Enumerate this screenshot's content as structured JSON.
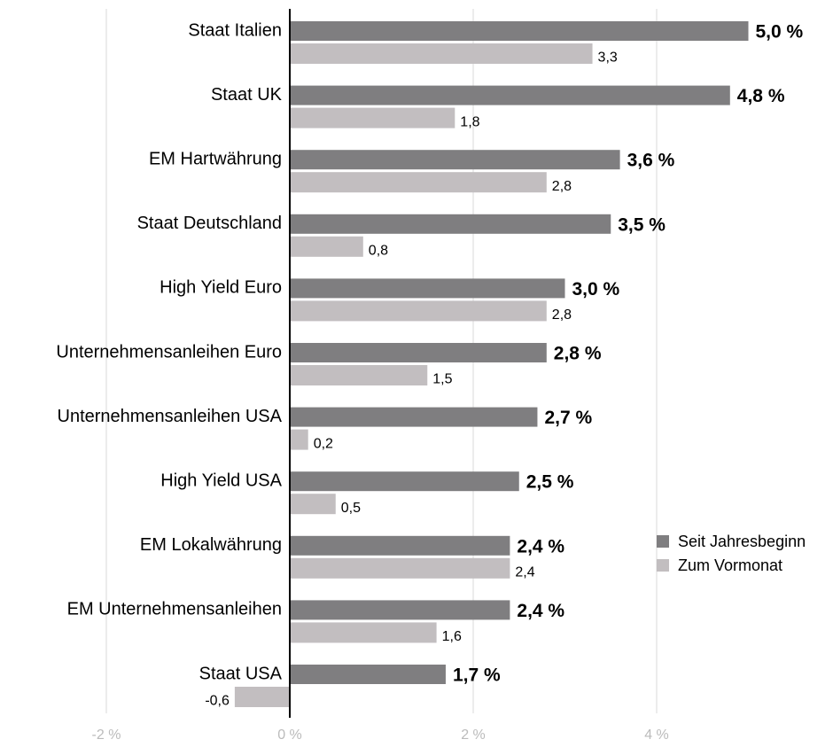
{
  "chart_data": {
    "type": "hbar",
    "categories": [
      "Staat Italien",
      "Staat UK",
      "EM Hartwährung",
      "Staat Deutschland",
      "High Yield Euro",
      "Unternehmensanleihen Euro",
      "Unternehmensanleihen USA",
      "High Yield USA",
      "EM Lokalwährung",
      "EM Unternehmensanleihen",
      "Staat USA"
    ],
    "series": [
      {
        "name": "Seit Jahresbeginn",
        "color": "#7f7e80",
        "values": [
          5.0,
          4.8,
          3.6,
          3.5,
          3.0,
          2.8,
          2.7,
          2.5,
          2.4,
          2.4,
          1.7
        ],
        "value_labels": [
          "5,0 %",
          "4,8 %",
          "3,6 %",
          "3,5 %",
          "3,0 %",
          "2,8 %",
          "2,7 %",
          "2,5 %",
          "2,4 %",
          "2,4 %",
          "1,7 %"
        ]
      },
      {
        "name": "Zum Vormonat",
        "color": "#c2bec0",
        "values": [
          3.3,
          1.8,
          2.8,
          0.8,
          2.8,
          1.5,
          0.2,
          0.5,
          2.4,
          1.6,
          -0.6
        ],
        "value_labels": [
          "3,3",
          "1,8",
          "2,8",
          "0,8",
          "2,8",
          "1,5",
          "0,2",
          "0,5",
          "2,4",
          "1,6",
          "-0,6"
        ]
      }
    ],
    "xlim": [
      -2,
      5.9
    ],
    "xticks": [
      {
        "value": -2,
        "label": "-2 %"
      },
      {
        "value": 0,
        "label": "0 %"
      },
      {
        "value": 2,
        "label": "2 %"
      },
      {
        "value": 4,
        "label": "4 %"
      }
    ],
    "grid": true,
    "legend": "right"
  }
}
